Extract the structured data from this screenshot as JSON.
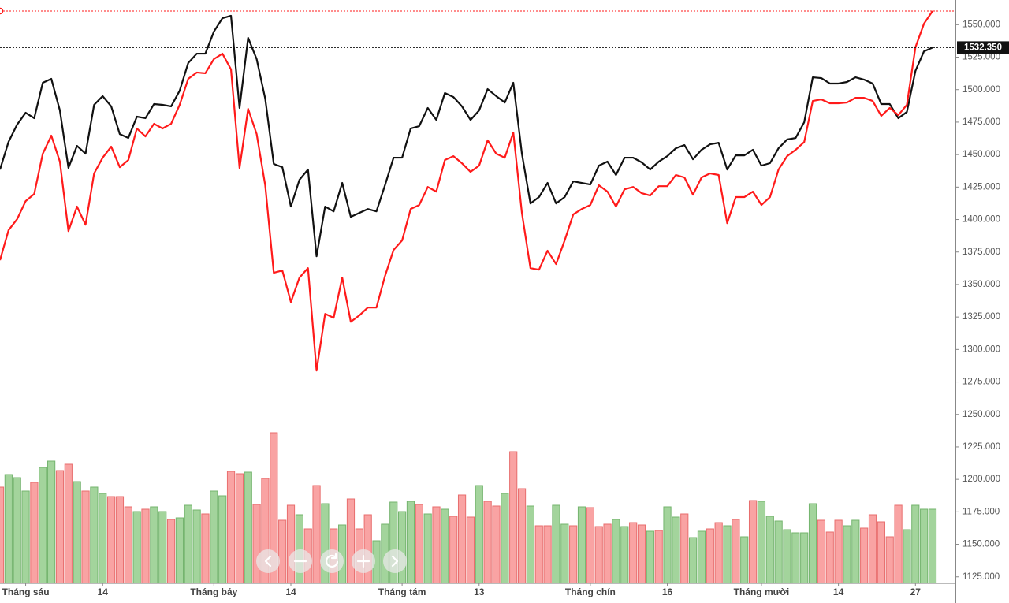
{
  "chart_data": {
    "type": "line",
    "ylim": [
      1120,
      1569
    ],
    "yticks": [
      {
        "value": 1125,
        "label": "1125.000"
      },
      {
        "value": 1150,
        "label": "1150.000"
      },
      {
        "value": 1175,
        "label": "1175.000"
      },
      {
        "value": 1200,
        "label": "1200.000"
      },
      {
        "value": 1225,
        "label": "1225.000"
      },
      {
        "value": 1250,
        "label": "1250.000"
      },
      {
        "value": 1275,
        "label": "1275.000"
      },
      {
        "value": 1300,
        "label": "1300.000"
      },
      {
        "value": 1325,
        "label": "1325.000"
      },
      {
        "value": 1350,
        "label": "1350.000"
      },
      {
        "value": 1375,
        "label": "1375.000"
      },
      {
        "value": 1400,
        "label": "1400.000"
      },
      {
        "value": 1425,
        "label": "1425.000"
      },
      {
        "value": 1450,
        "label": "1450.000"
      },
      {
        "value": 1475,
        "label": "1475.000"
      },
      {
        "value": 1500,
        "label": "1500.000"
      },
      {
        "value": 1525,
        "label": "1525.000"
      },
      {
        "value": 1550,
        "label": "1550.000"
      }
    ],
    "last_price": {
      "value": 1532.35,
      "label": "1532.350"
    },
    "categories": [
      null,
      null,
      null,
      "Tháng sáu",
      null,
      null,
      null,
      null,
      null,
      null,
      null,
      null,
      "14",
      null,
      null,
      null,
      null,
      null,
      null,
      null,
      null,
      null,
      null,
      null,
      null,
      "Tháng bảy",
      null,
      null,
      null,
      null,
      null,
      null,
      null,
      null,
      "14",
      null,
      null,
      null,
      null,
      null,
      null,
      null,
      null,
      null,
      null,
      null,
      null,
      "Tháng tám",
      null,
      null,
      null,
      null,
      null,
      null,
      null,
      null,
      "13",
      null,
      null,
      null,
      null,
      null,
      null,
      null,
      null,
      null,
      null,
      null,
      null,
      "Tháng chín",
      null,
      null,
      null,
      null,
      null,
      null,
      null,
      null,
      "16",
      null,
      null,
      null,
      null,
      null,
      null,
      null,
      null,
      null,
      null,
      "Tháng mười",
      null,
      null,
      null,
      null,
      null,
      null,
      null,
      null,
      "14",
      null,
      null,
      null,
      null,
      null,
      null,
      null,
      null,
      "27",
      null,
      null
    ],
    "series": [
      {
        "color": "#111111",
        "values": [
          1438.5,
          1459.8,
          1473.1,
          1482.2,
          1478,
          1505.3,
          1508.3,
          1484,
          1439.8,
          1456.7,
          1450.7,
          1488.3,
          1495,
          1487.1,
          1465.8,
          1462.8,
          1479.2,
          1478,
          1488.9,
          1488.3,
          1487.1,
          1499.2,
          1520.5,
          1527.7,
          1527.7,
          1544.7,
          1555,
          1556.9,
          1485.9,
          1539.9,
          1523.5,
          1493.1,
          1442.8,
          1440.3,
          1410,
          1430.6,
          1438.5,
          1371.7,
          1410,
          1406.3,
          1428.2,
          1402.1,
          1405.1,
          1408.1,
          1406.3,
          1426.4,
          1447.6,
          1447.6,
          1470.1,
          1471.9,
          1485.9,
          1476.7,
          1497.4,
          1494.3,
          1487.1,
          1476.7,
          1484,
          1500.4,
          1495,
          1490.1,
          1505.3,
          1450.7,
          1412.4,
          1417.3,
          1428.2,
          1412.4,
          1417.3,
          1429.4,
          1428.2,
          1427,
          1441.5,
          1444.6,
          1434.3,
          1447.6,
          1447.6,
          1444,
          1438.5,
          1444.6,
          1448.8,
          1454.9,
          1457.3,
          1446.4,
          1453.7,
          1457.9,
          1459.1,
          1438.5,
          1449.4,
          1449.4,
          1453.7,
          1441.5,
          1443.4,
          1454.9,
          1461.6,
          1462.8,
          1474.9,
          1509.5,
          1508.9,
          1504.7,
          1504.7,
          1505.9,
          1509.5,
          1507.7,
          1504.7,
          1488.9,
          1488.9,
          1478,
          1482.8,
          1514.4,
          1529.5,
          1532.35
        ]
      },
      {
        "color": "#ff1a1a",
        "values": [
          1368.7,
          1391.8,
          1400.3,
          1414.2,
          1419.7,
          1450.7,
          1464.6,
          1444.6,
          1391.1,
          1410,
          1396,
          1435.5,
          1447.6,
          1456.1,
          1440.3,
          1445.8,
          1470.1,
          1464,
          1473.7,
          1470.1,
          1473.7,
          1488.3,
          1508.3,
          1513.2,
          1512.6,
          1523.5,
          1527.7,
          1515.6,
          1439.7,
          1485.2,
          1465.8,
          1426.4,
          1359,
          1360.8,
          1336.5,
          1355.3,
          1362.6,
          1283.7,
          1327.4,
          1324.4,
          1355.3,
          1321.3,
          1326.2,
          1332.3,
          1332.3,
          1356.5,
          1376.6,
          1383.9,
          1408.1,
          1411.2,
          1425.1,
          1421.5,
          1445.8,
          1448.8,
          1443.3,
          1436.7,
          1441.5,
          1461,
          1450.7,
          1447.6,
          1467,
          1405.1,
          1362.6,
          1361.4,
          1376,
          1365.7,
          1383.9,
          1403.9,
          1408.1,
          1411.2,
          1426.4,
          1421.5,
          1410,
          1423.3,
          1425.1,
          1420.3,
          1418.5,
          1425.7,
          1425.7,
          1434.3,
          1432.4,
          1419.1,
          1432.4,
          1435.5,
          1434.3,
          1397.2,
          1417.3,
          1417.3,
          1421.5,
          1411.2,
          1417.3,
          1438.5,
          1448.8,
          1453.7,
          1459.7,
          1491.3,
          1492.5,
          1489.5,
          1489.5,
          1490.1,
          1493.7,
          1493.7,
          1491.3,
          1479.8,
          1485.9,
          1480.4,
          1488.3,
          1532.6,
          1550.8,
          1560.5
        ]
      }
    ],
    "volume": {
      "ylim": [
        0,
        100
      ],
      "up_color": "#a3d49c",
      "down_color": "#f9a3a3",
      "values": [
        61,
        69,
        67,
        58.5,
        64,
        73.5,
        77.5,
        71.5,
        75.5,
        64.5,
        58.5,
        61,
        57,
        55,
        55,
        48.5,
        45.5,
        47,
        48.5,
        45.5,
        40.5,
        41.5,
        49.5,
        46.5,
        44,
        58.5,
        55.5,
        71,
        69.5,
        70.5,
        50,
        66.5,
        95.5,
        40,
        49.5,
        43.5,
        34.5,
        62,
        50.5,
        34.5,
        37,
        53.5,
        34.5,
        43.5,
        27,
        37.5,
        51.5,
        45.5,
        52,
        50,
        44,
        48.5,
        47,
        42.5,
        56,
        42,
        62,
        52,
        49,
        57,
        83.5,
        60,
        49,
        36.5,
        36.5,
        49.5,
        37.5,
        36.5,
        48.5,
        48,
        36,
        37.5,
        40.5,
        36,
        38.5,
        37,
        33,
        33.5,
        48.5,
        42,
        44,
        29,
        33,
        34.5,
        38.5,
        36.5,
        40.5,
        29.5,
        52.5,
        52,
        42.5,
        39.5,
        34,
        32,
        32,
        50.5,
        40,
        32.5,
        40,
        36.5,
        40,
        35,
        43.5,
        39,
        29.5,
        49.5,
        34,
        49.5,
        47,
        47
      ],
      "up": [
        false,
        true,
        true,
        true,
        false,
        true,
        true,
        false,
        false,
        true,
        false,
        true,
        true,
        false,
        false,
        false,
        true,
        false,
        true,
        true,
        false,
        true,
        true,
        true,
        false,
        true,
        true,
        false,
        false,
        true,
        false,
        false,
        false,
        false,
        false,
        true,
        false,
        false,
        true,
        false,
        true,
        false,
        false,
        false,
        true,
        true,
        true,
        true,
        true,
        false,
        true,
        false,
        true,
        false,
        false,
        false,
        true,
        false,
        false,
        true,
        false,
        false,
        true,
        false,
        false,
        true,
        true,
        false,
        true,
        false,
        false,
        false,
        true,
        true,
        false,
        false,
        true,
        false,
        true,
        true,
        false,
        true,
        true,
        false,
        false,
        true,
        false,
        true,
        false,
        true,
        true,
        true,
        true,
        true,
        true,
        true,
        false,
        false,
        false,
        true,
        true,
        false,
        false,
        false,
        false,
        false,
        true,
        true,
        true,
        true
      ]
    }
  }
}
